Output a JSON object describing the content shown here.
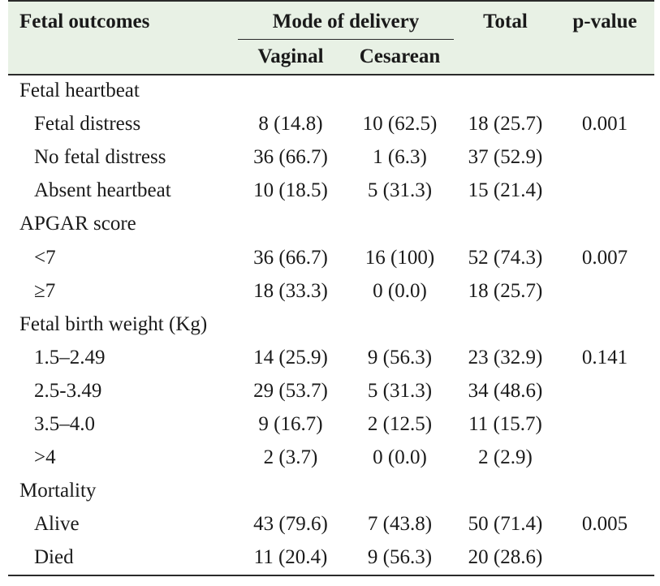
{
  "header": {
    "col_outcome": "Fetal outcomes",
    "col_mode": "Mode of delivery",
    "col_total": "Total",
    "col_pvalue": "p-value",
    "sub_vaginal": "Vaginal",
    "sub_cesarean": "Cesarean"
  },
  "sections": [
    {
      "title": "Fetal heartbeat",
      "rows": [
        {
          "label": "Fetal distress",
          "vaginal": "8 (14.8)",
          "cesarean": "10 (62.5)",
          "total": "18 (25.7)",
          "p": "0.001"
        },
        {
          "label": "No fetal distress",
          "vaginal": "36 (66.7)",
          "cesarean": "1 (6.3)",
          "total": "37 (52.9)",
          "p": ""
        },
        {
          "label": "Absent heartbeat",
          "vaginal": "10 (18.5)",
          "cesarean": "5 (31.3)",
          "total": "15 (21.4)",
          "p": ""
        }
      ]
    },
    {
      "title": "APGAR score",
      "rows": [
        {
          "label": "<7",
          "vaginal": "36 (66.7)",
          "cesarean": "16 (100)",
          "total": "52 (74.3)",
          "p": "0.007"
        },
        {
          "label": "≥7",
          "vaginal": "18 (33.3)",
          "cesarean": "0 (0.0)",
          "total": "18 (25.7)",
          "p": ""
        }
      ]
    },
    {
      "title": "Fetal birth weight (Kg)",
      "rows": [
        {
          "label": "1.5–2.49",
          "vaginal": "14 (25.9)",
          "cesarean": "9 (56.3)",
          "total": "23 (32.9)",
          "p": "0.141"
        },
        {
          "label": "2.5-3.49",
          "vaginal": "29 (53.7)",
          "cesarean": "5 (31.3)",
          "total": "34 (48.6)",
          "p": ""
        },
        {
          "label": "3.5–4.0",
          "vaginal": "9 (16.7)",
          "cesarean": "2 (12.5)",
          "total": "11 (15.7)",
          "p": ""
        },
        {
          "label": ">4",
          "vaginal": "2 (3.7)",
          "cesarean": "0 (0.0)",
          "total": "2 (2.9)",
          "p": ""
        }
      ]
    },
    {
      "title": "Mortality",
      "rows": [
        {
          "label": "Alive",
          "vaginal": "43 (79.6)",
          "cesarean": "7 (43.8)",
          "total": "50 (71.4)",
          "p": "0.005"
        },
        {
          "label": "Died",
          "vaginal": "11 (20.4)",
          "cesarean": "9 (56.3)",
          "total": "20 (28.6)",
          "p": ""
        }
      ]
    }
  ]
}
